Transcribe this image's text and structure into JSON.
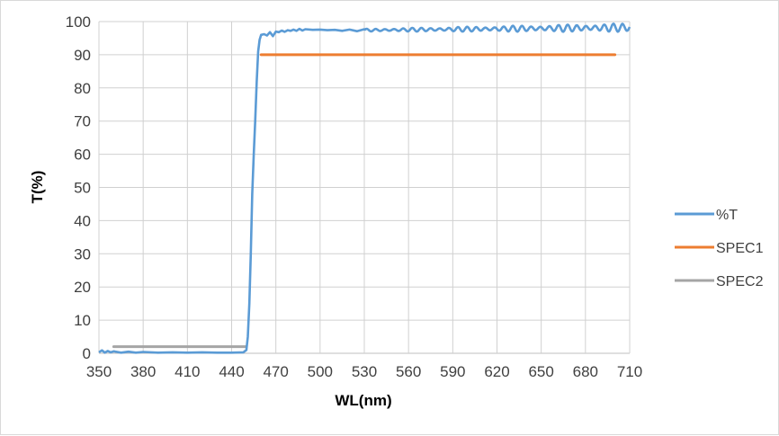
{
  "chart_data": {
    "type": "line",
    "xlabel": "WL(nm)",
    "ylabel": "T(%)",
    "xlim": [
      350,
      710
    ],
    "ylim": [
      0,
      100
    ],
    "xticks": [
      350,
      380,
      410,
      440,
      470,
      500,
      530,
      560,
      590,
      620,
      650,
      680,
      710
    ],
    "yticks": [
      0,
      10,
      20,
      30,
      40,
      50,
      60,
      70,
      80,
      90,
      100
    ],
    "grid": true,
    "legend_position": "right",
    "series": [
      {
        "name": "%T",
        "color": "#5B9BD5",
        "points": [
          [
            350,
            0.3
          ],
          [
            352,
            0.9
          ],
          [
            354,
            0.2
          ],
          [
            356,
            0.7
          ],
          [
            358,
            0.3
          ],
          [
            360,
            0.6
          ],
          [
            365,
            0.2
          ],
          [
            370,
            0.5
          ],
          [
            375,
            0.2
          ],
          [
            380,
            0.4
          ],
          [
            390,
            0.2
          ],
          [
            400,
            0.3
          ],
          [
            410,
            0.2
          ],
          [
            420,
            0.3
          ],
          [
            430,
            0.2
          ],
          [
            440,
            0.2
          ],
          [
            448,
            0.3
          ],
          [
            450,
            1.0
          ],
          [
            451,
            5
          ],
          [
            452,
            15
          ],
          [
            453,
            30
          ],
          [
            454,
            48
          ],
          [
            455,
            60
          ],
          [
            456,
            70
          ],
          [
            457,
            82
          ],
          [
            458,
            91
          ],
          [
            459,
            94.5
          ],
          [
            460,
            96
          ],
          [
            462,
            96.2
          ],
          [
            464,
            95.8
          ],
          [
            466,
            96.8
          ],
          [
            468,
            95.6
          ],
          [
            470,
            97
          ],
          [
            472,
            96.8
          ],
          [
            474,
            97.3
          ],
          [
            476,
            96.9
          ],
          [
            478,
            97.4
          ],
          [
            480,
            97.2
          ],
          [
            482,
            97.6
          ],
          [
            484,
            97.2
          ],
          [
            486,
            97.8
          ],
          [
            488,
            97.3
          ],
          [
            490,
            97.7
          ],
          [
            495,
            97.5
          ],
          [
            500,
            97.6
          ],
          [
            505,
            97.4
          ],
          [
            510,
            97.5
          ],
          [
            515,
            97.2
          ],
          [
            520,
            97.6
          ],
          [
            525,
            97.1
          ],
          [
            530,
            97.7
          ]
        ]
      },
      {
        "name": "SPEC1",
        "color": "#ED7D31",
        "points": [
          [
            460,
            90
          ],
          [
            700,
            90
          ]
        ]
      },
      {
        "name": "SPEC2",
        "color": "#A5A5A5",
        "points": [
          [
            360,
            2
          ],
          [
            450,
            2
          ]
        ]
      }
    ],
    "ripple": {
      "start": 530,
      "end": 710,
      "base": 97.4,
      "base_end": 98.2,
      "amp_start": 0.4,
      "amp_end": 1.3,
      "period": 6.2
    }
  }
}
